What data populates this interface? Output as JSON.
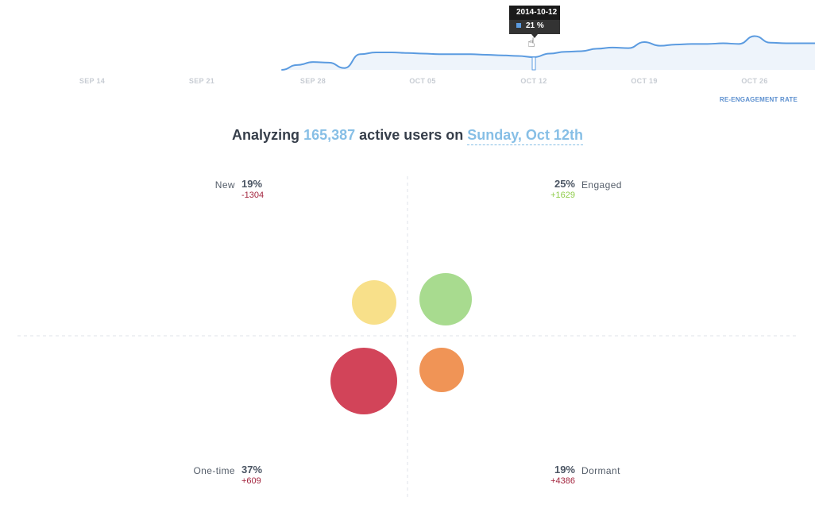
{
  "chart_data": {
    "type": "area",
    "title": "",
    "metric_label": "RE-ENGAGEMENT RATE",
    "x_ticks": [
      "SEP 14",
      "SEP 21",
      "SEP 28",
      "OCT 05",
      "OCT 12",
      "OCT 19",
      "OCT 26"
    ],
    "series": [
      {
        "name": "",
        "x": [
          "2014-09-26",
          "2014-09-27",
          "2014-09-28",
          "2014-09-29",
          "2014-09-30",
          "2014-10-01",
          "2014-10-02",
          "2014-10-03",
          "2014-10-04",
          "2014-10-05",
          "2014-10-06",
          "2014-10-07",
          "2014-10-08",
          "2014-10-09",
          "2014-10-10",
          "2014-10-11",
          "2014-10-12",
          "2014-10-13",
          "2014-10-14",
          "2014-10-15",
          "2014-10-16",
          "2014-10-17",
          "2014-10-18",
          "2014-10-19",
          "2014-10-20",
          "2014-10-21",
          "2014-10-22",
          "2014-10-23",
          "2014-10-24",
          "2014-10-25",
          "2014-10-26",
          "2014-10-27",
          "2014-10-28",
          "2014-10-29",
          "2014-10-30"
        ],
        "values": [
          0,
          8,
          13,
          12,
          3,
          26,
          29,
          29,
          28,
          27,
          26,
          26,
          26,
          25,
          24,
          23,
          21,
          27,
          30,
          31,
          35,
          37,
          36,
          46,
          40,
          42,
          43,
          43,
          44,
          43,
          56,
          45,
          44,
          44,
          44
        ]
      }
    ],
    "tooltip": {
      "date": "2014-10-12",
      "value": "21 %"
    },
    "colors": {
      "line": "#5b9be0",
      "fill": "#eef4fb",
      "tick_text": "#c7ccd3"
    }
  },
  "headline": {
    "prefix": "Analyzing",
    "count": "165,387",
    "middle": "active users on",
    "date": "Sunday, Oct 12th"
  },
  "quadrants": {
    "new": {
      "name": "New",
      "pct": "19%",
      "delta": "-1304",
      "color": "#f8e08a"
    },
    "engaged": {
      "name": "Engaged",
      "pct": "25%",
      "delta": "+1629",
      "color": "#a8db8f"
    },
    "one_time": {
      "name": "One-time",
      "pct": "37%",
      "delta": "+609",
      "color": "#d24459"
    },
    "dormant": {
      "name": "Dormant",
      "pct": "19%",
      "delta": "+4386",
      "color": "#f09456"
    }
  }
}
